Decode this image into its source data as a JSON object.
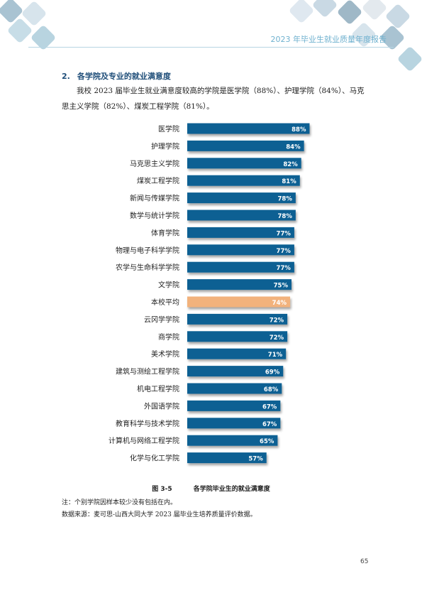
{
  "header": {
    "title": "2023 年毕业生就业质量年度报告"
  },
  "section": {
    "number": "2.",
    "title": "各学院及专业的就业满意度",
    "paragraph": "我校 2023 届毕业生就业满意度较高的学院是医学院（88%）、护理学院（84%）、马克思主义学院（82%）、煤炭工程学院（81%）。"
  },
  "chart_data": {
    "type": "bar",
    "orientation": "horizontal",
    "categories": [
      "医学院",
      "护理学院",
      "马克思主义学院",
      "煤炭工程学院",
      "新闻与传媒学院",
      "数学与统计学院",
      "体育学院",
      "物理与电子科学学院",
      "农学与生命科学学院",
      "文学院",
      "本校平均",
      "云冈学学院",
      "商学院",
      "美术学院",
      "建筑与测绘工程学院",
      "机电工程学院",
      "外国语学院",
      "教育科学与技术学院",
      "计算机与网络工程学院",
      "化学与化工学院"
    ],
    "values": [
      88,
      84,
      82,
      81,
      78,
      78,
      77,
      77,
      77,
      75,
      74,
      72,
      72,
      71,
      69,
      68,
      67,
      67,
      65,
      57
    ],
    "value_labels": [
      "88%",
      "84%",
      "82%",
      "81%",
      "78%",
      "78%",
      "77%",
      "77%",
      "77%",
      "75%",
      "74%",
      "72%",
      "72%",
      "71%",
      "69%",
      "68%",
      "67%",
      "67%",
      "65%",
      "57%"
    ],
    "highlight_category": "本校平均",
    "colors": {
      "bar": "#0a6193",
      "highlight": "#f2b27b",
      "label": "#ffffff"
    },
    "xlim": [
      0,
      100
    ],
    "grid": false
  },
  "caption": {
    "figure": "图 3-5",
    "title": "各学院毕业生的就业满意度"
  },
  "notes": {
    "note1": "注：个别学院因样本较少没有包括在内。",
    "source": "数据来源：麦可思-山西大同大学 2023 届毕业生培养质量评价数据。"
  },
  "page_number": "65",
  "decor_colors": [
    "#a9c3d2",
    "#d7e4ec",
    "#c7dde7",
    "#b8d4e0",
    "#9fb8c7",
    "#e3e9ee",
    "#c9d9e4",
    "#dfe8f0"
  ]
}
